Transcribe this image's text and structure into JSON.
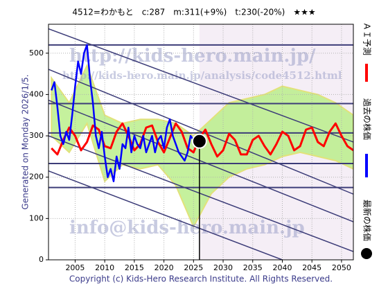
{
  "chart_data": {
    "type": "line",
    "title": "4512=わかもと　c:287　m:311(+9%)　t:230(-20%)　★★★",
    "side_note": "Generated on Monday 2026/1/5.",
    "copyright": "Copyright (c) Kids-Hero Research Institute. All Rights Reserved.",
    "watermarks": [
      "http://kids-hero.main.jp/",
      "http://kids-hero.main.jp/analysis/code4512.html",
      "info@kids-hero.main.jp"
    ],
    "xlim": [
      2000.5,
      2052
    ],
    "ylim": [
      0,
      570
    ],
    "xticks": [
      2005,
      2010,
      2015,
      2020,
      2025,
      2030,
      2035,
      2040,
      2045,
      2050
    ],
    "yticks": [
      0,
      100,
      200,
      300,
      400,
      500
    ],
    "grid": true,
    "series": [
      {
        "name": "ＡＩ予測",
        "color": "#ff0000",
        "x": [
          2001,
          2002,
          2003,
          2004,
          2005,
          2006,
          2007,
          2008,
          2009,
          2010,
          2011,
          2012,
          2013,
          2014,
          2015,
          2016,
          2017,
          2018,
          2019,
          2020,
          2021,
          2022,
          2023,
          2024,
          2025,
          2026,
          2027,
          2028,
          2029,
          2030,
          2031,
          2032,
          2033,
          2034,
          2035,
          2036,
          2037,
          2038,
          2039,
          2040,
          2041,
          2042,
          2043,
          2044,
          2045,
          2046,
          2047,
          2048,
          2049,
          2050,
          2051,
          2052
        ],
        "values": [
          270,
          255,
          290,
          320,
          300,
          265,
          285,
          325,
          315,
          275,
          270,
          310,
          330,
          300,
          265,
          280,
          320,
          325,
          285,
          260,
          295,
          330,
          310,
          270,
          260,
          295,
          315,
          280,
          250,
          265,
          305,
          290,
          255,
          255,
          290,
          300,
          275,
          255,
          280,
          310,
          300,
          265,
          275,
          315,
          320,
          285,
          275,
          310,
          330,
          300,
          275,
          265
        ]
      },
      {
        "name": "過去の株価",
        "color": "#0000ff",
        "x": [
          2001,
          2001.5,
          2002,
          2002.5,
          2003,
          2003.5,
          2004,
          2004.5,
          2005,
          2005.5,
          2006,
          2006.5,
          2007,
          2007.5,
          2008,
          2008.5,
          2009,
          2009.5,
          2010,
          2010.5,
          2011,
          2011.5,
          2012,
          2012.5,
          2013,
          2013.5,
          2014,
          2014.5,
          2015,
          2015.5,
          2016,
          2016.5,
          2017,
          2017.5,
          2018,
          2018.5,
          2019,
          2019.5,
          2020,
          2020.5,
          2021,
          2021.5,
          2022,
          2022.5,
          2023,
          2023.5,
          2024,
          2024.5,
          2025,
          2025.5,
          2026
        ],
        "values": [
          410,
          430,
          370,
          300,
          280,
          310,
          290,
          350,
          420,
          480,
          450,
          500,
          520,
          440,
          380,
          300,
          270,
          310,
          250,
          200,
          220,
          190,
          250,
          220,
          280,
          270,
          320,
          260,
          300,
          280,
          270,
          300,
          260,
          280,
          300,
          260,
          290,
          300,
          270,
          320,
          340,
          300,
          280,
          260,
          250,
          240,
          260,
          300,
          290,
          290,
          287
        ]
      }
    ],
    "latest": {
      "name": "最新の株価",
      "x": 2026,
      "value": 287,
      "color": "#000000"
    },
    "levels": [
      520,
      378,
      307,
      233,
      175
    ],
    "trend_lines": [
      {
        "x": [
          2000.5,
          2052
        ],
        "values": [
          559,
          285
        ]
      },
      {
        "x": [
          2000.5,
          2052
        ],
        "values": [
          461,
          159
        ]
      },
      {
        "x": [
          2000.5,
          2052
        ],
        "values": [
          386,
          92
        ]
      },
      {
        "x": [
          2000.5,
          2052
        ],
        "values": [
          300,
          20
        ]
      },
      {
        "x": [
          2000.5,
          2040
        ],
        "values": [
          215,
          0
        ]
      }
    ],
    "band": {
      "x": [
        2001,
        2004,
        2007,
        2010,
        2013,
        2016,
        2019,
        2022,
        2025,
        2028,
        2031,
        2034,
        2037,
        2040,
        2043,
        2046,
        2049,
        2052
      ],
      "upper": [
        440,
        380,
        470,
        350,
        330,
        340,
        340,
        330,
        300,
        340,
        380,
        390,
        400,
        420,
        410,
        400,
        380,
        350
      ],
      "lower": [
        300,
        260,
        330,
        190,
        230,
        220,
        230,
        180,
        80,
        160,
        200,
        220,
        230,
        250,
        260,
        250,
        240,
        220
      ]
    }
  }
}
